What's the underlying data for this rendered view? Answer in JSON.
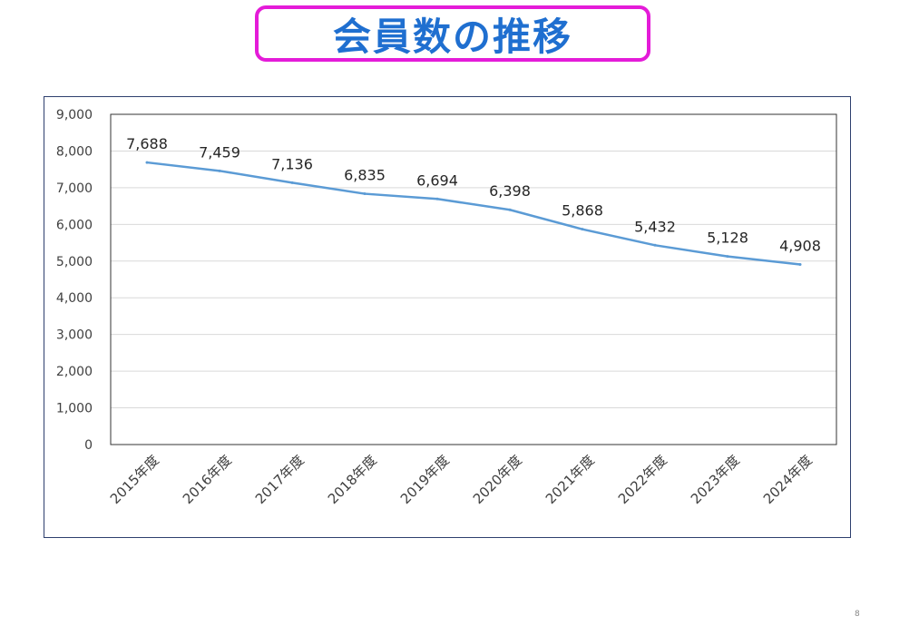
{
  "slide": {
    "title": "会員数の推移",
    "page_number": "8"
  },
  "colors": {
    "title_text": "#1f6fd0",
    "title_border": "#e41bd8",
    "frame_border": "#2e3f6e",
    "series_line": "#5b9bd5",
    "gridline": "#d9d9d9"
  },
  "chart_data": {
    "type": "line",
    "title": "",
    "xlabel": "",
    "ylabel": "",
    "categories": [
      "2015年度",
      "2016年度",
      "2017年度",
      "2018年度",
      "2019年度",
      "2020年度",
      "2021年度",
      "2022年度",
      "2023年度",
      "2024年度"
    ],
    "series": [
      {
        "values": [
          7688,
          7459,
          7136,
          6835,
          6694,
          6398,
          5868,
          5432,
          5128,
          4908
        ],
        "data_labels": [
          "7,688",
          "7,459",
          "7,136",
          "6,835",
          "6,694",
          "6,398",
          "5,868",
          "5,432",
          "5,128",
          "4,908"
        ]
      }
    ],
    "ylim": [
      0,
      9000
    ],
    "yticks": [
      0,
      1000,
      2000,
      3000,
      4000,
      5000,
      6000,
      7000,
      8000,
      9000
    ],
    "ytick_labels": [
      "0",
      "1,000",
      "2,000",
      "3,000",
      "4,000",
      "5,000",
      "6,000",
      "7,000",
      "8,000",
      "9,000"
    ],
    "grid": true,
    "legend": "none"
  }
}
